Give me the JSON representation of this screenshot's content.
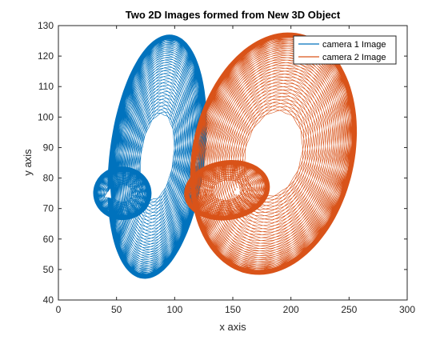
{
  "chart_data": {
    "type": "line",
    "title": "Two 2D Images formed from New 3D Object",
    "xlabel": "x axis",
    "ylabel": "y axis",
    "xlim": [
      0,
      300
    ],
    "ylim": [
      40,
      130
    ],
    "xticks": [
      "0",
      "50",
      "100",
      "150",
      "200",
      "250",
      "300"
    ],
    "yticks": [
      "40",
      "50",
      "60",
      "70",
      "80",
      "90",
      "100",
      "110",
      "120",
      "130"
    ],
    "grid": false,
    "legend_position": "top-right",
    "series": [
      {
        "name": "camera 1 Image",
        "color": "#0072BD",
        "body": {
          "center": [
            85,
            87
          ],
          "x_extent": [
            47,
            125
          ],
          "y_extent": [
            48,
            127
          ]
        },
        "handle": {
          "center": [
            55,
            75
          ],
          "x_extent": [
            32,
            78
          ],
          "y_extent": [
            67,
            83
          ]
        }
      },
      {
        "name": "camera 2 Image",
        "color": "#D95319",
        "body": {
          "center": [
            185,
            88
          ],
          "x_extent": [
            125,
            260
          ],
          "y_extent": [
            48,
            127
          ]
        },
        "handle": {
          "center": [
            145,
            76
          ],
          "x_extent": [
            95,
            165
          ],
          "y_extent": [
            68,
            86
          ]
        }
      }
    ]
  }
}
